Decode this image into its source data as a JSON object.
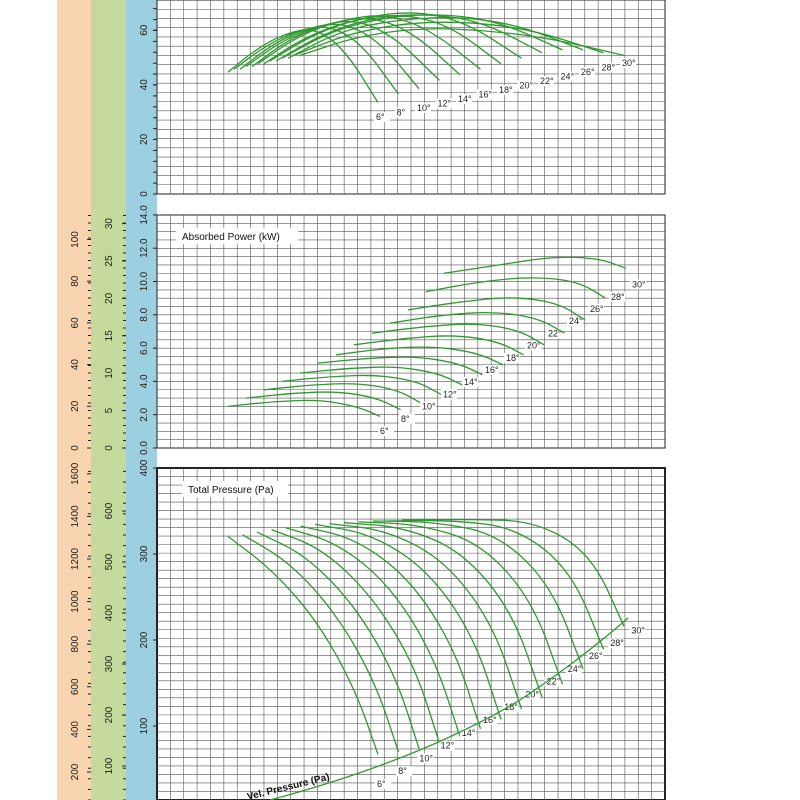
{
  "colors": {
    "curve": "#2e9a2e",
    "grid": "#555555",
    "band_orange": "#f9d4b0",
    "band_green": "#c5d99c",
    "band_blue": "#9ccfe0"
  },
  "angle_labels": [
    "6°",
    "8°",
    "10°",
    "12°",
    "14°",
    "16°",
    "18°",
    "20°",
    "22°",
    "24°",
    "26°",
    "28°",
    "30°"
  ],
  "axes": {
    "efficiency_ticks": [
      "0",
      "20",
      "40",
      "60"
    ],
    "power_ticks": [
      "0.0",
      "2.0",
      "4.0",
      "6.0",
      "8.0",
      "10.0",
      "12.0",
      "14.0"
    ],
    "power_alt_ticks_a": [
      "0",
      "5",
      "10",
      "15",
      "20",
      "25",
      "30"
    ],
    "power_alt_ticks_b": [
      "0",
      "20",
      "40",
      "60",
      "80",
      "100"
    ],
    "pressure_ticks": [
      "100",
      "200",
      "300",
      "400"
    ],
    "pressure_alt_ticks_a": [
      "100",
      "200",
      "300",
      "400",
      "500",
      "600"
    ],
    "pressure_alt_ticks_b": [
      "200",
      "400",
      "600",
      "800",
      "1000",
      "1200",
      "1400",
      "1600"
    ]
  },
  "chart_data": [
    {
      "type": "line",
      "title": "",
      "ylabel": "",
      "ylim": [
        0,
        70
      ],
      "series": [
        {
          "label": "6°",
          "x": [
            0.0,
            0.18,
            0.38,
            0.58,
            0.78,
            1.0
          ],
          "y": [
            44,
            52,
            58,
            60,
            52,
            33
          ]
        },
        {
          "label": "8°",
          "x": [
            0.0,
            0.18,
            0.38,
            0.58,
            0.78,
            1.0
          ],
          "y": [
            45,
            53,
            59,
            61,
            54,
            36
          ]
        },
        {
          "label": "10°",
          "x": [
            0.0,
            0.18,
            0.38,
            0.58,
            0.78,
            1.0
          ],
          "y": [
            45,
            54,
            60,
            62,
            55,
            38
          ]
        },
        {
          "label": "12°",
          "x": [
            0.0,
            0.18,
            0.38,
            0.58,
            0.78,
            1.0
          ],
          "y": [
            46,
            55,
            61,
            63,
            56,
            41
          ]
        },
        {
          "label": "14°",
          "x": [
            0.0,
            0.18,
            0.38,
            0.58,
            0.78,
            1.0
          ],
          "y": [
            46,
            56,
            62,
            64,
            58,
            43
          ]
        },
        {
          "label": "16°",
          "x": [
            0.0,
            0.18,
            0.38,
            0.58,
            0.78,
            1.0
          ],
          "y": [
            47,
            57,
            63,
            65,
            59,
            45
          ]
        },
        {
          "label": "18°",
          "x": [
            0.0,
            0.18,
            0.38,
            0.58,
            0.78,
            1.0
          ],
          "y": [
            47,
            57,
            63,
            65,
            61,
            47
          ]
        },
        {
          "label": "20°",
          "x": [
            0.0,
            0.18,
            0.38,
            0.58,
            0.78,
            1.0
          ],
          "y": [
            48,
            58,
            64,
            66,
            62,
            49
          ]
        },
        {
          "label": "22°",
          "x": [
            0.0,
            0.18,
            0.38,
            0.58,
            0.78,
            1.0
          ],
          "y": [
            48,
            58,
            64,
            65,
            62,
            51
          ]
        },
        {
          "label": "24°",
          "x": [
            0.0,
            0.18,
            0.38,
            0.58,
            0.78,
            1.0
          ],
          "y": [
            49,
            59,
            64,
            65,
            62,
            52
          ]
        },
        {
          "label": "26°",
          "x": [
            0.0,
            0.18,
            0.38,
            0.58,
            0.78,
            1.0
          ],
          "y": [
            49,
            59,
            63,
            64,
            61,
            52
          ]
        },
        {
          "label": "28°",
          "x": [
            0.0,
            0.18,
            0.38,
            0.58,
            0.78,
            1.0
          ],
          "y": [
            50,
            58,
            62,
            62,
            59,
            51
          ]
        },
        {
          "label": "30°",
          "x": [
            0.0,
            0.18,
            0.38,
            0.58,
            0.78,
            1.0
          ],
          "y": [
            50,
            57,
            60,
            59,
            56,
            50
          ]
        }
      ]
    },
    {
      "type": "line",
      "title": "Absorbed Power (kW)",
      "ylabel": "",
      "ylim": [
        0,
        14
      ],
      "series": [
        {
          "label": "6°",
          "x": [
            0.0,
            0.3,
            0.6,
            0.85,
            1.0
          ],
          "y": [
            2.5,
            2.8,
            2.9,
            2.5,
            1.9
          ]
        },
        {
          "label": "8°",
          "x": [
            0.0,
            0.3,
            0.6,
            0.85,
            1.0
          ],
          "y": [
            3.0,
            3.3,
            3.4,
            3.0,
            2.3
          ]
        },
        {
          "label": "10°",
          "x": [
            0.0,
            0.3,
            0.6,
            0.85,
            1.0
          ],
          "y": [
            3.5,
            3.8,
            3.9,
            3.5,
            2.7
          ]
        },
        {
          "label": "12°",
          "x": [
            0.0,
            0.3,
            0.6,
            0.85,
            1.0
          ],
          "y": [
            4.0,
            4.3,
            4.4,
            4.0,
            3.2
          ]
        },
        {
          "label": "14°",
          "x": [
            0.0,
            0.3,
            0.6,
            0.85,
            1.0
          ],
          "y": [
            4.5,
            4.8,
            4.9,
            4.5,
            3.8
          ]
        },
        {
          "label": "16°",
          "x": [
            0.0,
            0.3,
            0.6,
            0.85,
            1.0
          ],
          "y": [
            5.1,
            5.4,
            5.5,
            5.1,
            4.4
          ]
        },
        {
          "label": "18°",
          "x": [
            0.0,
            0.3,
            0.6,
            0.85,
            1.0
          ],
          "y": [
            5.6,
            6.0,
            6.1,
            5.7,
            5.0
          ]
        },
        {
          "label": "20°",
          "x": [
            0.0,
            0.3,
            0.6,
            0.85,
            1.0
          ],
          "y": [
            6.2,
            6.6,
            6.8,
            6.4,
            5.6
          ]
        },
        {
          "label": "22°",
          "x": [
            0.0,
            0.3,
            0.6,
            0.85,
            1.0
          ],
          "y": [
            6.9,
            7.3,
            7.5,
            7.1,
            6.2
          ]
        },
        {
          "label": "24°",
          "x": [
            0.0,
            0.3,
            0.6,
            0.85,
            1.0
          ],
          "y": [
            7.5,
            8.0,
            8.2,
            7.8,
            6.9
          ]
        },
        {
          "label": "26°",
          "x": [
            0.0,
            0.3,
            0.6,
            0.85,
            1.0
          ],
          "y": [
            8.3,
            8.8,
            9.1,
            8.7,
            7.7
          ]
        },
        {
          "label": "28°",
          "x": [
            0.0,
            0.3,
            0.6,
            0.85,
            1.0
          ],
          "y": [
            9.4,
            10.0,
            10.3,
            10.0,
            9.0
          ]
        },
        {
          "label": "30°",
          "x": [
            0.0,
            0.3,
            0.6,
            0.85,
            1.0
          ],
          "y": [
            10.5,
            11.0,
            11.5,
            11.4,
            10.8
          ]
        }
      ]
    },
    {
      "type": "line",
      "title": "Total Pressure (Pa)",
      "ylabel": "",
      "ylim": [
        0,
        400
      ],
      "series": [
        {
          "label": "6°",
          "x": [
            0.0,
            0.3,
            0.6,
            0.85,
            1.0
          ],
          "y": [
            320,
            280,
            220,
            140,
            65
          ]
        },
        {
          "label": "8°",
          "x": [
            0.0,
            0.3,
            0.6,
            0.85,
            1.0
          ],
          "y": [
            322,
            290,
            230,
            150,
            68
          ]
        },
        {
          "label": "10°",
          "x": [
            0.0,
            0.3,
            0.6,
            0.85,
            1.0
          ],
          "y": [
            325,
            298,
            240,
            160,
            72
          ]
        },
        {
          "label": "12°",
          "x": [
            0.0,
            0.3,
            0.6,
            0.85,
            1.0
          ],
          "y": [
            328,
            306,
            250,
            170,
            78
          ]
        },
        {
          "label": "14°",
          "x": [
            0.0,
            0.3,
            0.6,
            0.85,
            1.0
          ],
          "y": [
            330,
            312,
            262,
            180,
            86
          ]
        },
        {
          "label": "16°",
          "x": [
            0.0,
            0.3,
            0.6,
            0.85,
            1.0
          ],
          "y": [
            332,
            318,
            272,
            192,
            95
          ]
        },
        {
          "label": "18°",
          "x": [
            0.0,
            0.3,
            0.6,
            0.85,
            1.0
          ],
          "y": [
            334,
            323,
            282,
            205,
            106
          ]
        },
        {
          "label": "20°",
          "x": [
            0.0,
            0.3,
            0.6,
            0.85,
            1.0
          ],
          "y": [
            335,
            327,
            292,
            218,
            118
          ]
        },
        {
          "label": "22°",
          "x": [
            0.0,
            0.3,
            0.6,
            0.85,
            1.0
          ],
          "y": [
            336,
            331,
            302,
            232,
            132
          ]
        },
        {
          "label": "24°",
          "x": [
            0.0,
            0.3,
            0.6,
            0.85,
            1.0
          ],
          "y": [
            337,
            334,
            312,
            246,
            147
          ]
        },
        {
          "label": "26°",
          "x": [
            0.0,
            0.3,
            0.6,
            0.85,
            1.0
          ],
          "y": [
            338,
            337,
            322,
            262,
            165
          ]
        },
        {
          "label": "28°",
          "x": [
            0.0,
            0.3,
            0.6,
            0.85,
            1.0
          ],
          "y": [
            338,
            339,
            330,
            280,
            188
          ]
        },
        {
          "label": "30°",
          "x": [
            0.0,
            0.3,
            0.6,
            0.85,
            1.0
          ],
          "y": [
            339,
            340,
            338,
            300,
            215
          ]
        }
      ],
      "vel_pressure": {
        "label": "Vel. Pressure (Pa)",
        "curve": [
          5,
          20,
          45,
          80,
          125,
          200,
          230
        ]
      }
    }
  ]
}
